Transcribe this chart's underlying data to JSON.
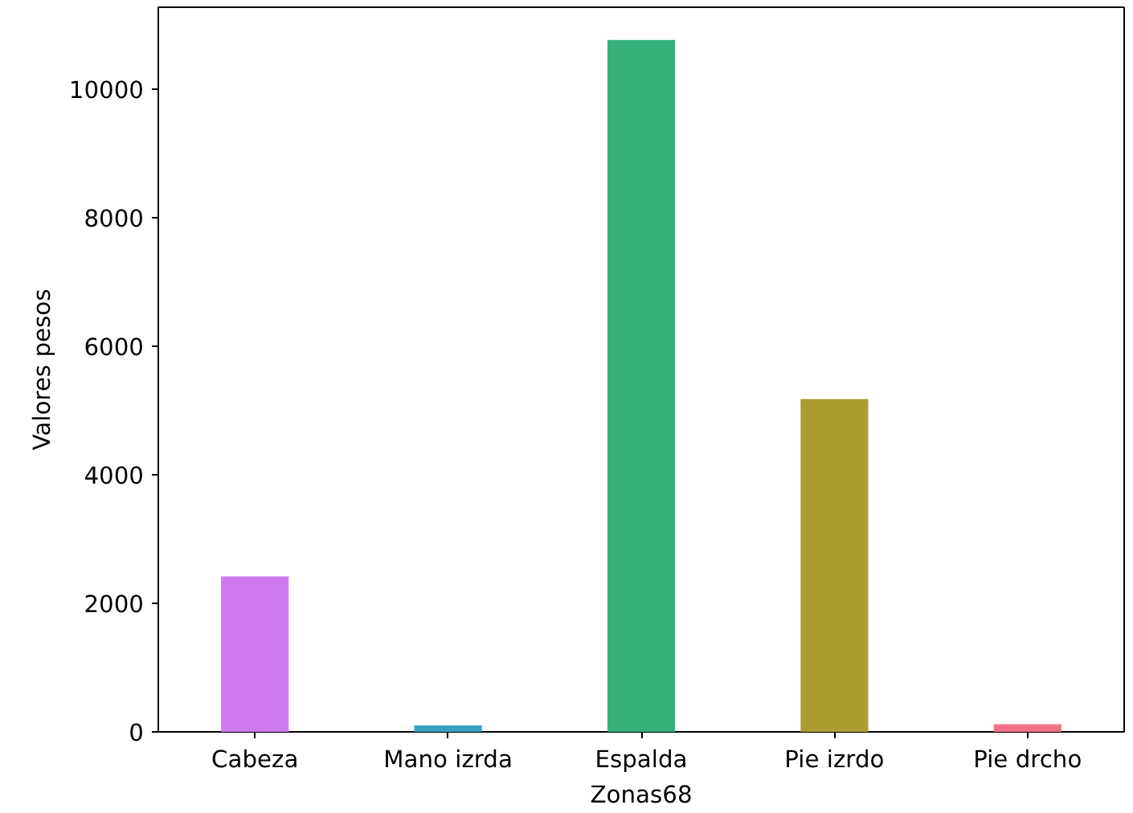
{
  "chart_data": {
    "type": "bar",
    "xlabel": "Zonas68",
    "ylabel": "Valores pesos",
    "categories": [
      "Cabeza",
      "Mano izrda",
      "Espalda",
      "Pie izrdo",
      "Pie drcho"
    ],
    "values": [
      2420,
      100,
      10770,
      5180,
      120
    ],
    "colors": [
      "#cc79f0",
      "#36a2c0",
      "#35b07b",
      "#ad9c31",
      "#f2718a"
    ],
    "ylim": [
      0,
      11280
    ],
    "yticks": [
      0,
      2000,
      4000,
      6000,
      8000,
      10000
    ],
    "grid": false
  }
}
